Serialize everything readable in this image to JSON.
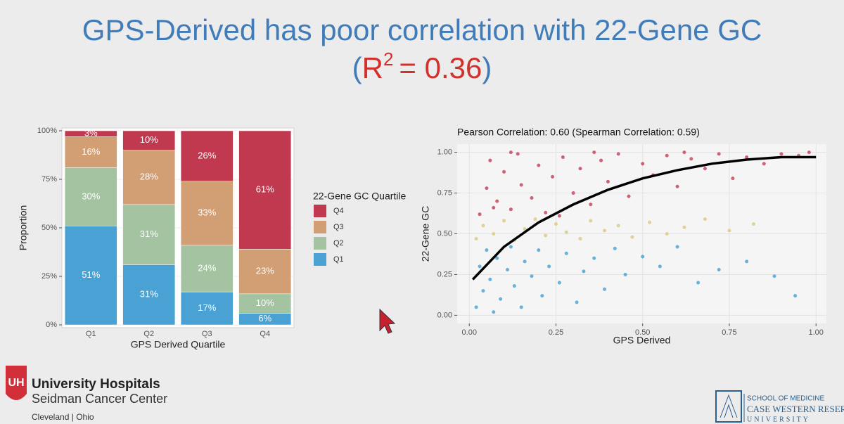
{
  "header": {
    "title": "GPS-Derived has poor correlation with 22-Gene GC",
    "r2": {
      "open": "(",
      "symbol": "R",
      "sup": "2",
      "value": "= 0.36",
      "close": ")"
    }
  },
  "chart_data": [
    {
      "type": "stacked_bar",
      "x_label": "GPS Derived Quartile",
      "y_label": "Proportion",
      "legend_title": "22-Gene GC Quartile",
      "categories": [
        "Q1",
        "Q2",
        "Q3",
        "Q4"
      ],
      "series": [
        {
          "name": "Q1",
          "color": "#4aa1d4",
          "values": [
            0.51,
            0.31,
            0.17,
            0.06
          ],
          "value_labels": [
            "51%",
            "31%",
            "17%",
            "6%"
          ]
        },
        {
          "name": "Q2",
          "color": "#a4c3a1",
          "values": [
            0.3,
            0.31,
            0.24,
            0.1
          ],
          "value_labels": [
            "30%",
            "31%",
            "24%",
            "10%"
          ]
        },
        {
          "name": "Q3",
          "color": "#d29e73",
          "values": [
            0.16,
            0.28,
            0.33,
            0.23
          ],
          "value_labels": [
            "16%",
            "28%",
            "33%",
            "23%"
          ]
        },
        {
          "name": "Q4",
          "color": "#c0394f",
          "values": [
            0.03,
            0.1,
            0.26,
            0.61
          ],
          "value_labels": [
            "3%",
            "10%",
            "26%",
            "61%"
          ]
        }
      ],
      "ylim": [
        0,
        1
      ],
      "yticks": [
        {
          "value": 0,
          "label": "0%"
        },
        {
          "value": 0.25,
          "label": "25%"
        },
        {
          "value": 0.5,
          "label": "50%"
        },
        {
          "value": 0.75,
          "label": "75%"
        },
        {
          "value": 1,
          "label": "100%"
        }
      ],
      "grid": true
    },
    {
      "type": "scatter",
      "title": "Pearson Correlation: 0.60 (Spearman Correlation: 0.59)",
      "x_label": "GPS Derived",
      "y_label": "22-Gene GC",
      "xlim": [
        -0.035,
        1.03
      ],
      "ylim": [
        -0.05,
        1.05
      ],
      "xticks": [
        {
          "value": 0,
          "label": "0.00"
        },
        {
          "value": 0.25,
          "label": "0.25"
        },
        {
          "value": 0.5,
          "label": "0.50"
        },
        {
          "value": 0.75,
          "label": "0.75"
        },
        {
          "value": 1,
          "label": "1.00"
        }
      ],
      "yticks": [
        {
          "value": 0,
          "label": "0.00"
        },
        {
          "value": 0.25,
          "label": "0.25"
        },
        {
          "value": 0.5,
          "label": "0.50"
        },
        {
          "value": 0.75,
          "label": "0.75"
        },
        {
          "value": 1,
          "label": "1.00"
        }
      ],
      "grid": true,
      "series": [
        {
          "mode": "markers",
          "color": "#c7485f",
          "x": [
            0.03,
            0.05,
            0.06,
            0.08,
            0.1,
            0.12,
            0.14,
            0.15,
            0.18,
            0.2,
            0.22,
            0.24,
            0.27,
            0.3,
            0.32,
            0.35,
            0.38,
            0.4,
            0.43,
            0.46,
            0.5,
            0.53,
            0.57,
            0.6,
            0.64,
            0.68,
            0.72,
            0.76,
            0.8,
            0.85,
            0.9,
            0.95,
            0.98,
            0.12,
            0.36,
            0.62,
            0.07,
            0.26
          ],
          "y": [
            0.62,
            0.78,
            0.95,
            0.7,
            0.88,
            0.65,
            0.99,
            0.8,
            0.72,
            0.92,
            0.63,
            0.85,
            0.97,
            0.75,
            0.9,
            0.68,
            0.95,
            0.82,
            0.99,
            0.73,
            0.93,
            0.86,
            0.98,
            0.79,
            0.96,
            0.9,
            0.99,
            0.84,
            0.97,
            0.93,
            0.99,
            0.98,
            1.0,
            1.0,
            1.0,
            1.0,
            0.66,
            0.61
          ]
        },
        {
          "mode": "markers",
          "color": "#dccb85",
          "x": [
            0.02,
            0.04,
            0.07,
            0.1,
            0.13,
            0.16,
            0.19,
            0.22,
            0.25,
            0.28,
            0.32,
            0.35,
            0.39,
            0.43,
            0.47,
            0.52,
            0.57,
            0.62,
            0.68,
            0.75,
            0.82
          ],
          "y": [
            0.47,
            0.55,
            0.5,
            0.58,
            0.46,
            0.53,
            0.59,
            0.49,
            0.56,
            0.51,
            0.47,
            0.58,
            0.52,
            0.55,
            0.48,
            0.57,
            0.5,
            0.54,
            0.59,
            0.52,
            0.56
          ]
        },
        {
          "mode": "markers",
          "color": "#4ea6d6",
          "x": [
            0.02,
            0.03,
            0.04,
            0.05,
            0.06,
            0.07,
            0.08,
            0.09,
            0.11,
            0.12,
            0.13,
            0.15,
            0.16,
            0.18,
            0.2,
            0.21,
            0.23,
            0.26,
            0.28,
            0.31,
            0.33,
            0.36,
            0.39,
            0.42,
            0.45,
            0.5,
            0.55,
            0.6,
            0.66,
            0.72,
            0.8,
            0.88,
            0.94
          ],
          "y": [
            0.05,
            0.3,
            0.15,
            0.4,
            0.22,
            0.02,
            0.35,
            0.1,
            0.28,
            0.42,
            0.18,
            0.05,
            0.33,
            0.24,
            0.4,
            0.12,
            0.3,
            0.2,
            0.38,
            0.08,
            0.27,
            0.35,
            0.16,
            0.41,
            0.25,
            0.36,
            0.3,
            0.42,
            0.2,
            0.28,
            0.33,
            0.24,
            0.12
          ]
        },
        {
          "mode": "line",
          "color": "#000000",
          "x": [
            0.01,
            0.1,
            0.2,
            0.3,
            0.4,
            0.5,
            0.6,
            0.7,
            0.8,
            0.9,
            1.0
          ],
          "y": [
            0.22,
            0.42,
            0.57,
            0.68,
            0.77,
            0.84,
            0.89,
            0.93,
            0.955,
            0.97,
            0.97
          ]
        }
      ]
    }
  ],
  "footer": {
    "left": {
      "badge": "UH",
      "name": "University Hospitals",
      "center": "Seidman Cancer Center",
      "city": "Cleveland",
      "separator": "|",
      "state": "Ohio"
    },
    "right": {
      "school": "SCHOOL OF MEDICINE",
      "name": "CASE WESTERN RESERVE",
      "university": "UNIVERSITY"
    }
  }
}
